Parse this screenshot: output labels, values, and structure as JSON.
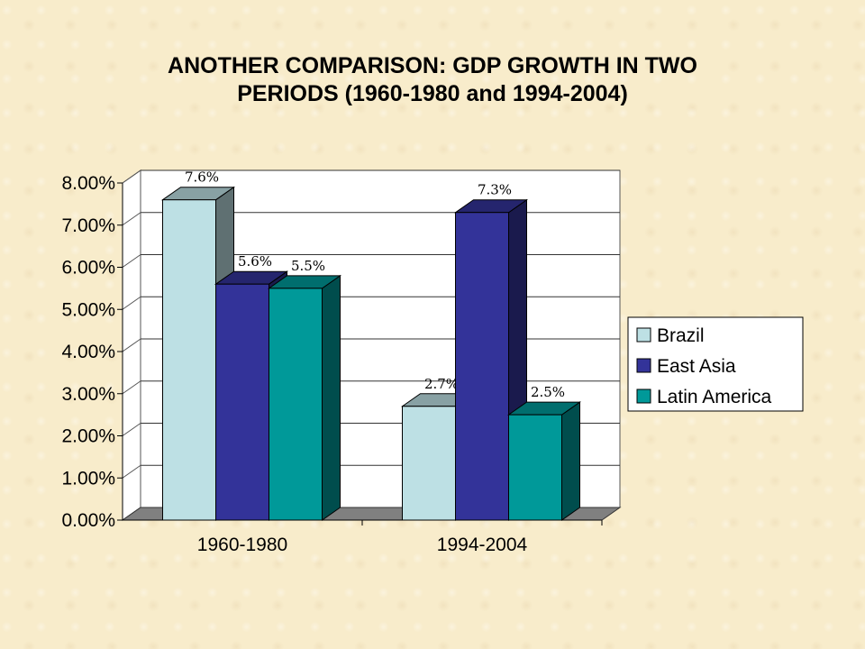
{
  "chart_data": {
    "type": "bar",
    "title_lines": [
      "ANOTHER COMPARISON: GDP GROWTH IN TWO",
      "PERIODS (1960-1980 and 1994-2004)"
    ],
    "categories": [
      "1960-1980",
      "1994-2004"
    ],
    "series": [
      {
        "name": "Brazil",
        "values": [
          7.6,
          2.7
        ],
        "labels": [
          "7.6%",
          "2.7%"
        ],
        "color": "#bde0e4"
      },
      {
        "name": "East Asia",
        "values": [
          5.6,
          7.3
        ],
        "labels": [
          "5.6%",
          "7.3%"
        ],
        "color": "#333399"
      },
      {
        "name": "Latin America",
        "values": [
          5.5,
          2.5
        ],
        "labels": [
          "5.5%",
          "2.5%"
        ],
        "color": "#009999"
      }
    ],
    "ylim": [
      0,
      8
    ],
    "yticks": [
      "0.00%",
      "1.00%",
      "2.00%",
      "3.00%",
      "4.00%",
      "5.00%",
      "6.00%",
      "7.00%",
      "8.00%"
    ],
    "grid": true,
    "legend_position": "right",
    "style": "3d-column"
  }
}
